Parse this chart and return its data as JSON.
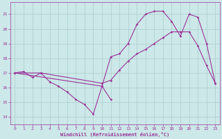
{
  "bg_color": "#cce8e8",
  "line_color": "#993399",
  "grid_color": "#aacccc",
  "xlabel": "Windchill (Refroidissement éolien,°C)",
  "xlabel_color": "#993399",
  "xlim": [
    -0.5,
    23.5
  ],
  "ylim": [
    13.5,
    21.8
  ],
  "yticks": [
    14,
    15,
    16,
    17,
    18,
    19,
    20,
    21
  ],
  "xticks": [
    0,
    1,
    2,
    3,
    4,
    5,
    6,
    7,
    8,
    9,
    10,
    11,
    12,
    13,
    14,
    15,
    16,
    17,
    18,
    19,
    20,
    21,
    22,
    23
  ],
  "series1_x": [
    0,
    1,
    2,
    3,
    4,
    5,
    6,
    7,
    8,
    9,
    10,
    11
  ],
  "series1_y": [
    17.0,
    17.1,
    16.7,
    17.0,
    16.4,
    16.1,
    15.7,
    15.2,
    14.85,
    14.2,
    16.1,
    15.2
  ],
  "series2_x": [
    0,
    3,
    10,
    11,
    12,
    13,
    14,
    15,
    16,
    17,
    18,
    19,
    20,
    21,
    22,
    23
  ],
  "series2_y": [
    17.0,
    17.0,
    16.3,
    16.5,
    17.2,
    17.8,
    18.3,
    18.6,
    19.0,
    19.4,
    19.8,
    19.8,
    19.8,
    18.85,
    17.5,
    16.3
  ],
  "series3_x": [
    0,
    10,
    11,
    12,
    13,
    14,
    15,
    16,
    17,
    18,
    19,
    20,
    21,
    22,
    23
  ],
  "series3_y": [
    17.0,
    16.1,
    18.1,
    18.3,
    19.0,
    20.3,
    21.0,
    21.2,
    21.2,
    20.5,
    19.5,
    21.0,
    20.8,
    19.0,
    16.3
  ]
}
